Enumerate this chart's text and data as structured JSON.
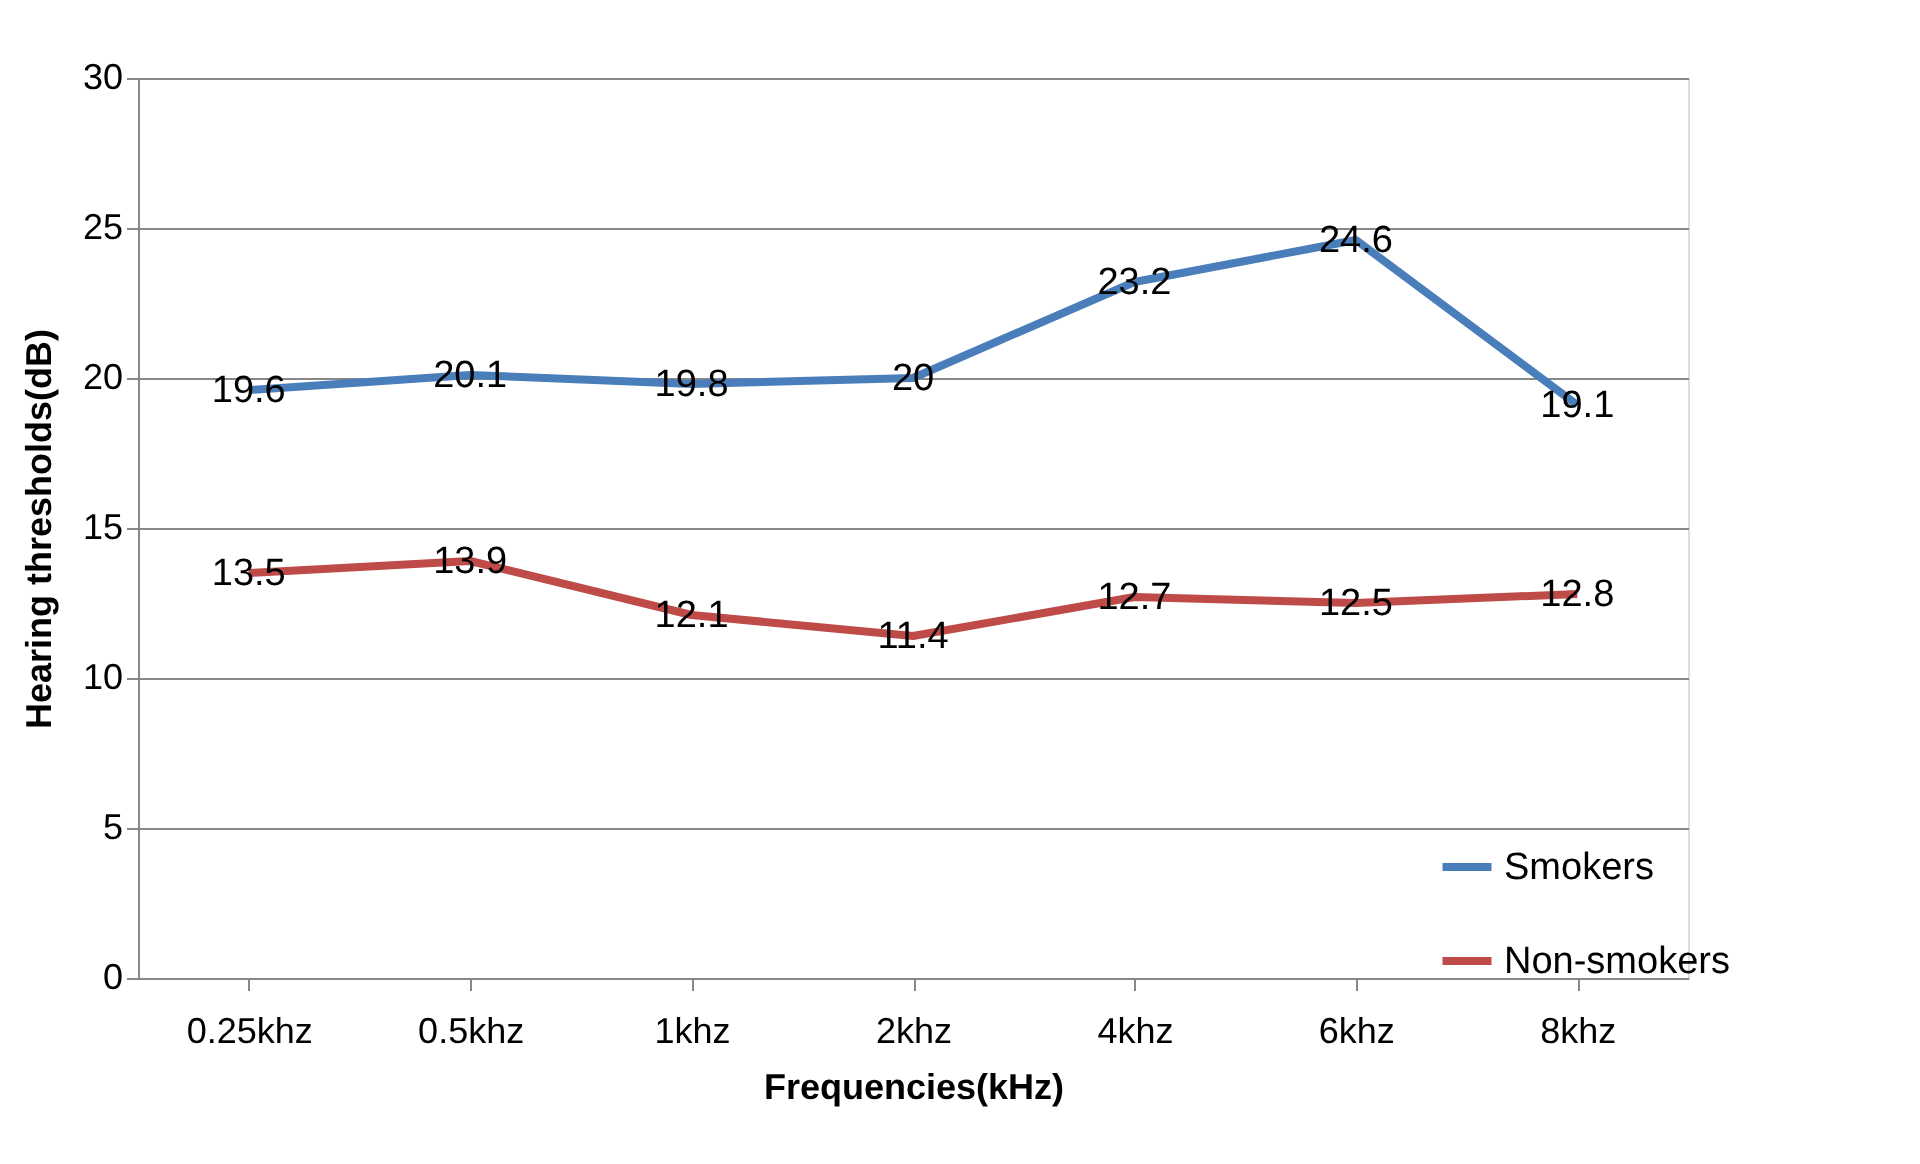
{
  "chart_data": {
    "type": "line",
    "xlabel": "Frequencies(kHz)",
    "ylabel": "Hearing thresholds(dB)",
    "categories": [
      "0.25khz",
      "0.5khz",
      "1khz",
      "2khz",
      "4khz",
      "6khz",
      "8khz"
    ],
    "series": [
      {
        "name": "Smokers",
        "color": "#4a7ebb",
        "values": [
          19.6,
          20.1,
          19.8,
          20,
          23.2,
          24.6,
          19.1
        ]
      },
      {
        "name": "Non-smokers",
        "color": "#be4b48",
        "values": [
          13.5,
          13.9,
          12.1,
          11.4,
          12.7,
          12.5,
          12.8
        ]
      }
    ],
    "ylim": [
      0,
      30
    ],
    "yticks": [
      0,
      5,
      10,
      15,
      20,
      25,
      30
    ],
    "grid": "y",
    "legend": "bottom right",
    "data_labels": true,
    "marker": "none",
    "line_style": "solid"
  }
}
